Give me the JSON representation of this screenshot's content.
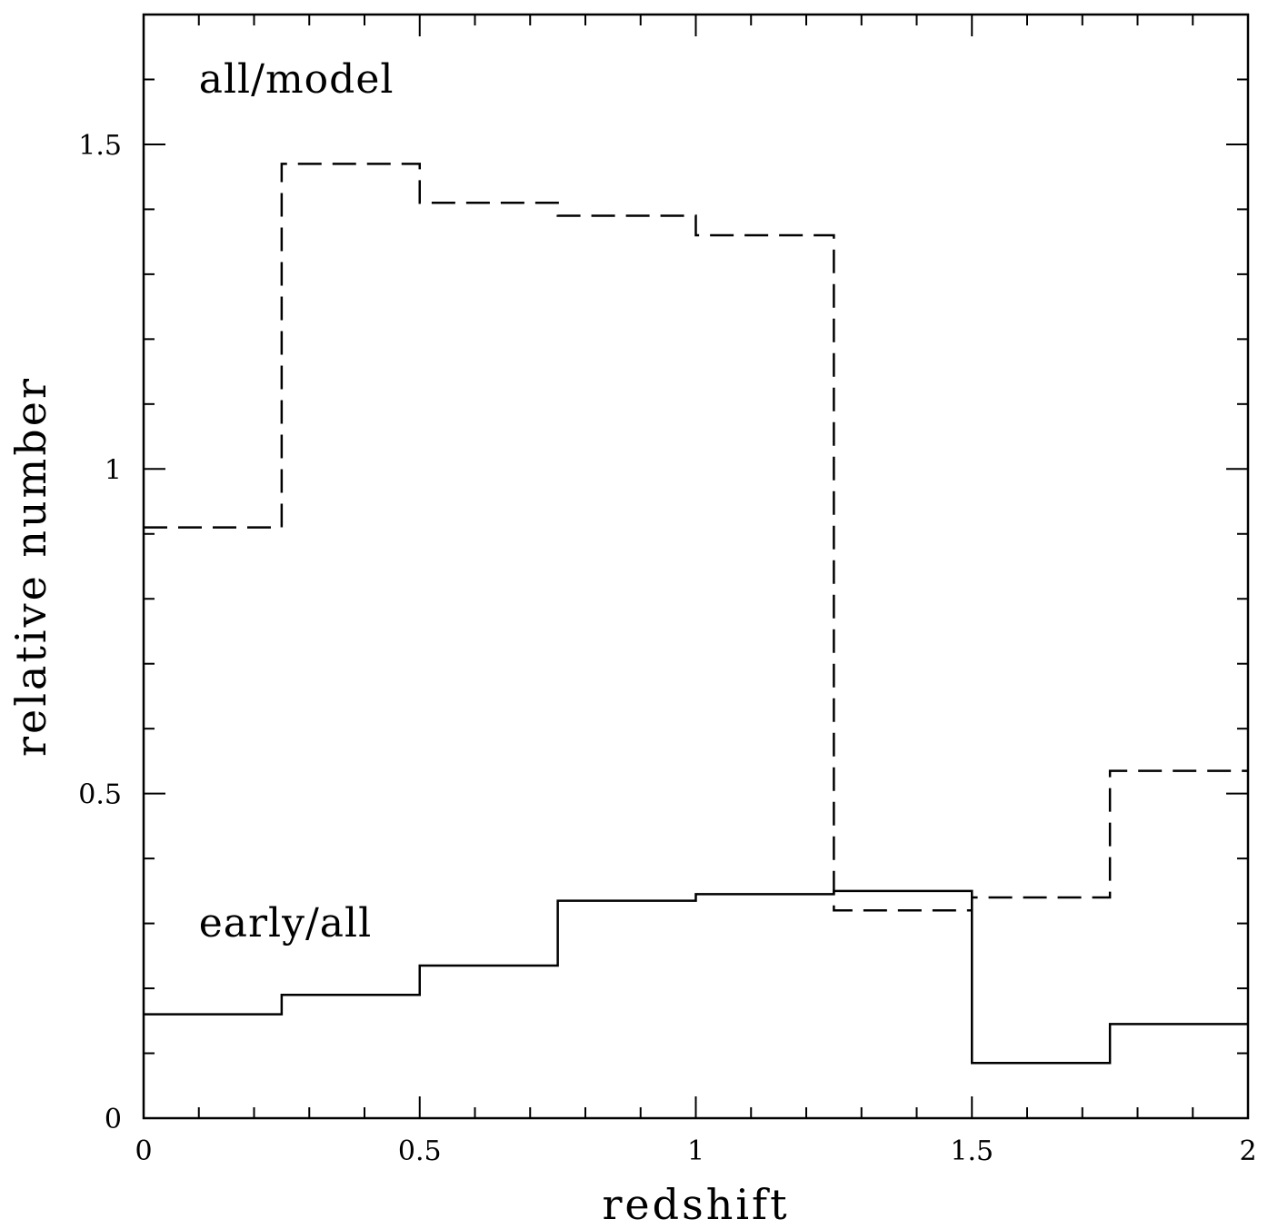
{
  "chart_data": {
    "type": "line",
    "step": "post",
    "xlabel": "redshift",
    "ylabel": "relative number",
    "xlim": [
      0,
      2
    ],
    "ylim": [
      0,
      1.7
    ],
    "x_ticks": [
      {
        "value": 0,
        "label": "0"
      },
      {
        "value": 0.5,
        "label": "0.5"
      },
      {
        "value": 1,
        "label": "1"
      },
      {
        "value": 1.5,
        "label": "1.5"
      },
      {
        "value": 2,
        "label": "2"
      }
    ],
    "y_ticks": [
      {
        "value": 0,
        "label": "0"
      },
      {
        "value": 0.5,
        "label": "0.5"
      },
      {
        "value": 1,
        "label": "1"
      },
      {
        "value": 1.5,
        "label": "1.5"
      }
    ],
    "x_minor_step": 0.1,
    "y_minor_step": 0.1,
    "grid": false,
    "bin_edges": [
      0,
      0.25,
      0.5,
      0.75,
      1.0,
      1.25,
      1.5,
      1.75,
      2.0
    ],
    "series": [
      {
        "name": "all/model",
        "style": "dashed",
        "values": [
          0.91,
          1.47,
          1.41,
          1.39,
          1.36,
          0.32,
          0.34,
          0.535
        ]
      },
      {
        "name": "early/all",
        "style": "solid",
        "values": [
          0.16,
          0.19,
          0.235,
          0.335,
          0.345,
          0.35,
          0.085,
          0.145
        ]
      }
    ],
    "annotations": [
      {
        "text": "all/model",
        "x": 0.1,
        "y": 1.58
      },
      {
        "text": "early/all",
        "x": 0.1,
        "y": 0.28
      }
    ]
  }
}
